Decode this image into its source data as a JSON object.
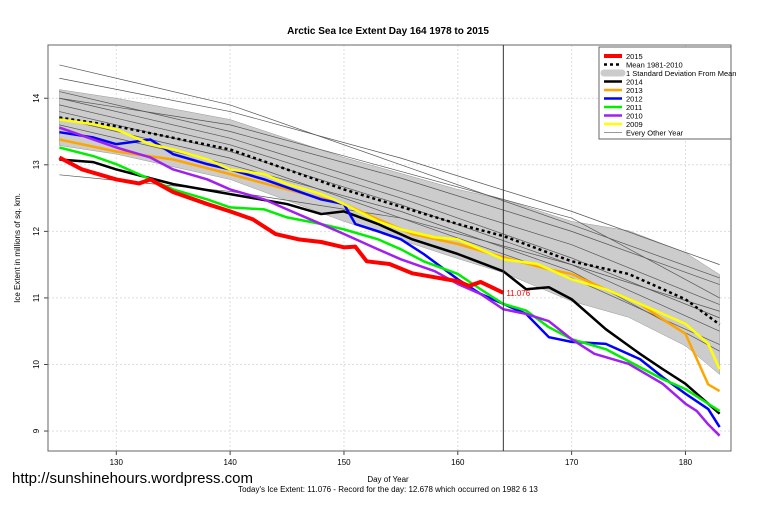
{
  "watermark": "http://sunshinehours.wordpress.com",
  "footer": "Today's Ice Extent: 11.076  - Record for the day: 12.678 which occurred on 1982 6 13",
  "chart_data": {
    "type": "line",
    "title": "Arctic Sea Ice Extent Day 164 1978 to 2015",
    "xlabel": "Day of Year",
    "ylabel": "Ice Extent in millions of sq. km.",
    "xlim": [
      124,
      184
    ],
    "ylim": [
      8.7,
      14.8
    ],
    "xticks": [
      130,
      140,
      150,
      160,
      170,
      180
    ],
    "yticks": [
      9,
      10,
      11,
      12,
      13,
      14
    ],
    "grid": true,
    "legend_position": "top-right",
    "current_day": 164,
    "current_value_label": "11.076",
    "mean": {
      "name": "Mean 1981-2010",
      "color": "#000000",
      "x": [
        125,
        130,
        140,
        150,
        160,
        164,
        170,
        175,
        180,
        183
      ],
      "y": [
        13.71,
        13.58,
        13.23,
        12.63,
        12.11,
        11.93,
        11.55,
        11.36,
        10.98,
        10.6
      ]
    },
    "std_band": {
      "name": "1 Standard Deviation From Mean",
      "color": "#cccccc",
      "x": [
        125,
        130,
        140,
        150,
        160,
        164,
        170,
        175,
        180,
        183
      ],
      "sd": [
        0.42,
        0.42,
        0.45,
        0.48,
        0.52,
        0.55,
        0.6,
        0.65,
        0.7,
        0.75
      ]
    },
    "series": [
      {
        "name": "2014",
        "color": "#000000",
        "x": [
          125,
          128,
          130,
          135,
          140,
          145,
          148,
          150,
          153,
          156,
          160,
          164,
          166,
          168,
          170,
          173,
          176,
          178,
          180,
          181,
          183
        ],
        "y": [
          13.08,
          13.04,
          12.93,
          12.71,
          12.56,
          12.41,
          12.26,
          12.3,
          12.11,
          11.88,
          11.66,
          11.4,
          11.13,
          11.16,
          10.98,
          10.53,
          10.16,
          9.93,
          9.71,
          9.56,
          9.26
        ]
      },
      {
        "name": "2013",
        "color": "#ffa500",
        "x": [
          125,
          130,
          135,
          140,
          145,
          150,
          153,
          156,
          160,
          164,
          168,
          170,
          173,
          176,
          178,
          180,
          182,
          183
        ],
        "y": [
          13.38,
          13.2,
          13.08,
          12.86,
          12.63,
          12.41,
          12.18,
          11.96,
          11.81,
          11.61,
          11.43,
          11.36,
          11.13,
          10.91,
          10.68,
          10.46,
          9.7,
          9.6
        ]
      },
      {
        "name": "2012",
        "color": "#0000ff",
        "x": [
          125,
          128,
          130,
          133,
          135,
          138,
          140,
          143,
          145,
          148,
          150,
          151,
          153,
          155,
          157,
          160,
          162,
          164,
          166,
          168,
          170,
          173,
          176,
          178,
          180,
          182,
          183
        ],
        "y": [
          13.49,
          13.41,
          13.31,
          13.38,
          13.16,
          13.01,
          12.93,
          12.78,
          12.66,
          12.48,
          12.41,
          12.11,
          12.0,
          11.88,
          11.66,
          11.28,
          11.06,
          10.91,
          10.76,
          10.41,
          10.34,
          10.31,
          10.08,
          9.81,
          9.56,
          9.33,
          9.06
        ]
      },
      {
        "name": "2011",
        "color": "#00ee00",
        "x": [
          125,
          128,
          130,
          133,
          135,
          138,
          140,
          143,
          145,
          148,
          150,
          153,
          155,
          157,
          160,
          162,
          164,
          166,
          168,
          170,
          173,
          175,
          178,
          180,
          182,
          183
        ],
        "y": [
          13.26,
          13.13,
          13.01,
          12.78,
          12.63,
          12.48,
          12.36,
          12.33,
          12.21,
          12.11,
          12.03,
          11.88,
          11.73,
          11.55,
          11.36,
          11.13,
          10.91,
          10.81,
          10.56,
          10.38,
          10.23,
          10.05,
          9.78,
          9.63,
          9.41,
          9.3
        ]
      },
      {
        "name": "2010",
        "color": "#a020f0",
        "x": [
          125,
          128,
          130,
          133,
          135,
          138,
          140,
          143,
          145,
          148,
          150,
          153,
          155,
          158,
          160,
          162,
          164,
          166,
          168,
          170,
          172,
          175,
          178,
          180,
          181,
          182,
          183
        ],
        "y": [
          13.56,
          13.38,
          13.26,
          13.11,
          12.93,
          12.78,
          12.63,
          12.48,
          12.33,
          12.11,
          11.96,
          11.73,
          11.58,
          11.4,
          11.21,
          11.06,
          10.83,
          10.76,
          10.65,
          10.38,
          10.16,
          10.01,
          9.71,
          9.41,
          9.3,
          9.1,
          8.93
        ]
      },
      {
        "name": "2009",
        "color": "#ffff00",
        "x": [
          125,
          128,
          130,
          133,
          135,
          138,
          140,
          143,
          145,
          148,
          150,
          153,
          155,
          158,
          160,
          162,
          164,
          167,
          170,
          173,
          176,
          178,
          180,
          182,
          183
        ],
        "y": [
          13.68,
          13.61,
          13.53,
          13.31,
          13.23,
          13.08,
          12.93,
          12.86,
          12.71,
          12.56,
          12.41,
          12.15,
          12.03,
          11.91,
          11.88,
          11.73,
          11.58,
          11.51,
          11.28,
          11.13,
          10.91,
          10.76,
          10.61,
          10.31,
          9.93
        ]
      },
      {
        "name": "2015",
        "color": "#ff0000",
        "x": [
          125,
          127,
          130,
          132,
          133,
          135,
          138,
          140,
          142,
          144,
          146,
          148,
          150,
          151,
          152,
          154,
          156,
          158,
          160,
          161,
          162,
          164
        ],
        "y": [
          13.11,
          12.93,
          12.78,
          12.72,
          12.78,
          12.59,
          12.41,
          12.3,
          12.18,
          11.96,
          11.88,
          11.84,
          11.76,
          11.77,
          11.55,
          11.51,
          11.37,
          11.31,
          11.25,
          11.18,
          11.24,
          11.076
        ]
      }
    ],
    "other_years": {
      "name": "Every Other Year",
      "color": "#555555",
      "x": [
        125,
        140,
        155,
        170,
        183
      ],
      "lines": [
        [
          14.3,
          13.8,
          13.1,
          12.3,
          11.5
        ],
        [
          14.1,
          13.5,
          12.8,
          12.0,
          11.2
        ],
        [
          14.0,
          13.4,
          12.6,
          11.8,
          10.9
        ],
        [
          13.9,
          13.3,
          12.5,
          11.6,
          10.7
        ],
        [
          13.8,
          13.2,
          12.4,
          11.5,
          10.5
        ],
        [
          14.5,
          13.9,
          13.0,
          12.1,
          11.3
        ],
        [
          13.7,
          13.1,
          12.2,
          11.3,
          10.3
        ],
        [
          12.85,
          12.6,
          12.2,
          11.5,
          10.8
        ],
        [
          14.0,
          13.6,
          12.9,
          12.2,
          11.0
        ],
        [
          13.6,
          13.0,
          12.3,
          11.4,
          10.2
        ]
      ]
    }
  }
}
